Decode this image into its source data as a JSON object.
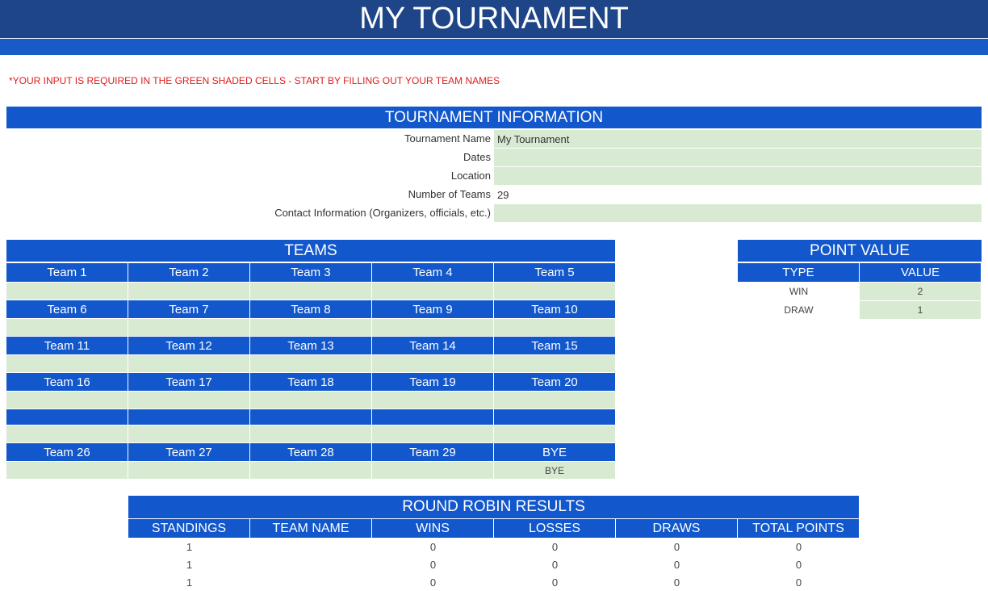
{
  "title": "MY TOURNAMENT",
  "note": "*YOUR INPUT IS REQUIRED IN THE GREEN SHADED CELLS - START BY FILLING OUT YOUR TEAM NAMES",
  "colors": {
    "header_dark": "#1d4587",
    "header_blue": "#1257cb",
    "input_green": "#d9ead3",
    "note_red": "#e01b1b"
  },
  "info": {
    "header": "TOURNAMENT INFORMATION",
    "rows": [
      {
        "label": "Tournament Name",
        "value": "My Tournament",
        "input": true
      },
      {
        "label": "Dates",
        "value": "",
        "input": true
      },
      {
        "label": "Location",
        "value": "",
        "input": true
      },
      {
        "label": "Number of Teams",
        "value": "29",
        "input": false
      },
      {
        "label": "Contact Information (Organizers, officials, etc.)",
        "value": "",
        "input": true
      }
    ]
  },
  "teams": {
    "header": "TEAMS",
    "rows": [
      {
        "labels": [
          "Team 1",
          "Team 2",
          "Team 3",
          "Team 4",
          "Team 5"
        ],
        "values": [
          "",
          "",
          "",
          "",
          ""
        ]
      },
      {
        "labels": [
          "Team 6",
          "Team 7",
          "Team 8",
          "Team 9",
          "Team 10"
        ],
        "values": [
          "",
          "",
          "",
          "",
          ""
        ]
      },
      {
        "labels": [
          "Team 11",
          "Team 12",
          "Team 13",
          "Team 14",
          "Team 15"
        ],
        "values": [
          "",
          "",
          "",
          "",
          ""
        ]
      },
      {
        "labels": [
          "Team 16",
          "Team 17",
          "Team 18",
          "Team 19",
          "Team 20"
        ],
        "values": [
          "",
          "",
          "",
          "",
          ""
        ]
      },
      {
        "labels": [
          "",
          "",
          "",
          "",
          ""
        ],
        "values": [
          "",
          "",
          "",
          "",
          ""
        ]
      },
      {
        "labels": [
          "Team 26",
          "Team 27",
          "Team 28",
          "Team 29",
          "BYE"
        ],
        "values": [
          "",
          "",
          "",
          "",
          "BYE"
        ]
      }
    ]
  },
  "points": {
    "header": "POINT VALUE",
    "columns": [
      "TYPE",
      "VALUE"
    ],
    "rows": [
      {
        "type": "WIN",
        "value": "2"
      },
      {
        "type": "DRAW",
        "value": "1"
      }
    ]
  },
  "results": {
    "header": "ROUND ROBIN RESULTS",
    "columns": [
      "STANDINGS",
      "TEAM NAME",
      "WINS",
      "LOSSES",
      "DRAWS",
      "TOTAL POINTS"
    ],
    "rows": [
      [
        "1",
        "",
        "0",
        "0",
        "0",
        "0"
      ],
      [
        "1",
        "",
        "0",
        "0",
        "0",
        "0"
      ],
      [
        "1",
        "",
        "0",
        "0",
        "0",
        "0"
      ]
    ]
  }
}
